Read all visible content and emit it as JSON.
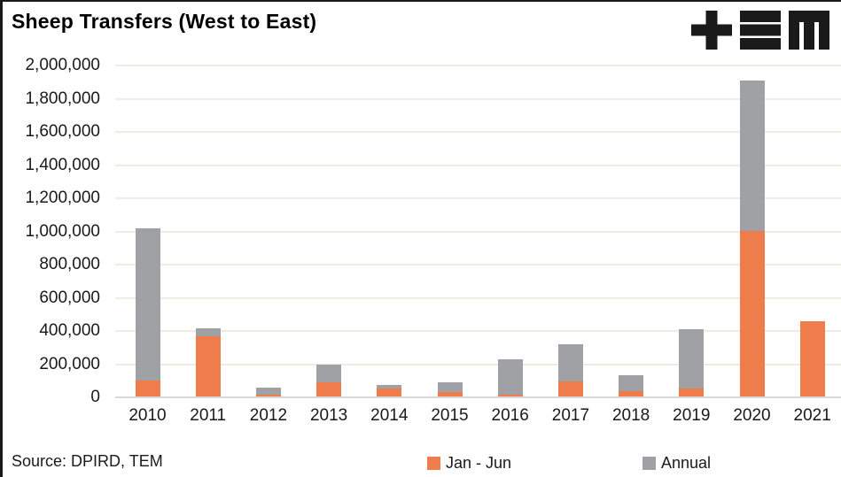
{
  "title": "Sheep Transfers (West to East)",
  "logo": {
    "name": "TEM logo",
    "color": "#1a1a1a"
  },
  "source_text": "Source: DPIRD, TEM",
  "colors": {
    "jan_jun": "#EE7D4B",
    "annual": "#A0A1A5",
    "gridline": "#EFEDE3",
    "axis_line": "#D9D9D9",
    "text": "#1a1a1a",
    "title": "#000000"
  },
  "legend": {
    "items": [
      {
        "label": "Jan - Jun",
        "color_key": "jan_jun"
      },
      {
        "label": "Annual",
        "color_key": "annual"
      }
    ],
    "position": "bottom"
  },
  "chart_data": {
    "type": "bar",
    "stacked": true,
    "title": "Sheep Transfers (West to East)",
    "categories": [
      "2010",
      "2011",
      "2012",
      "2013",
      "2014",
      "2015",
      "2016",
      "2017",
      "2018",
      "2019",
      "2020",
      "2021"
    ],
    "series": [
      {
        "name": "Jan - Jun",
        "role": "orange bottom segment",
        "values": [
          100000,
          370000,
          15000,
          90000,
          55000,
          30000,
          18000,
          95000,
          35000,
          55000,
          1005000,
          460000
        ]
      },
      {
        "name": "Annual",
        "role": "total bar height; gray segment drawn = annual minus jan_jun",
        "values": [
          1015000,
          420000,
          55000,
          195000,
          75000,
          90000,
          230000,
          320000,
          130000,
          410000,
          1910000,
          null
        ]
      }
    ],
    "xlabel": "",
    "ylabel": "",
    "ylim": [
      0,
      2000000
    ],
    "ytick_step": 200000,
    "ytick_labels": [
      "0",
      "200,000",
      "400,000",
      "600,000",
      "800,000",
      "1,000,000",
      "1,200,000",
      "1,400,000",
      "1,600,000",
      "1,800,000",
      "2,000,000"
    ],
    "grid": true,
    "legend_position": "bottom"
  }
}
